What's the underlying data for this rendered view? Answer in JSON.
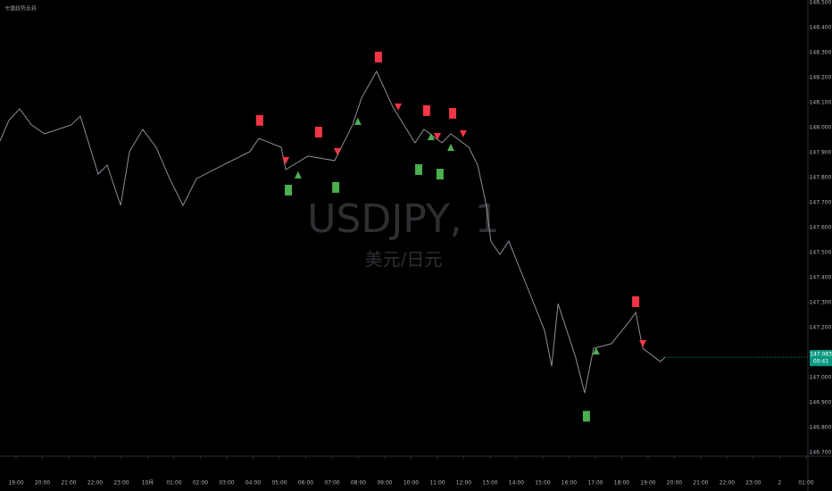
{
  "chart_data": {
    "type": "line",
    "title": "卡盟趋势反转",
    "watermark": "USDJPY, 1",
    "watermark_subtitle": "美元/日元",
    "last_price_label": "147.083",
    "countdown_label": "00:41",
    "color": "#8a8f98",
    "x": [
      -0.61,
      -0.27,
      0.14,
      0.58,
      1.08,
      2.1,
      2.44,
      3.12,
      3.46,
      3.97,
      4.31,
      4.81,
      5.32,
      5.83,
      6.34,
      6.85,
      7.86,
      8.88,
      9.22,
      10.07,
      10.24,
      11.08,
      12.1,
      12.78,
      13.12,
      13.69,
      14.31,
      15.15,
      15.49,
      16.17,
      16.51,
      17.19,
      17.53,
      17.86,
      18.03,
      18.37,
      18.71,
      19.39,
      20.07,
      20.34,
      20.58,
      21.25,
      21.59,
      21.93,
      22.61,
      23.29,
      23.53,
      23.8,
      24.47,
      24.64
    ],
    "values": [
      147.946,
      148.029,
      148.075,
      148.011,
      147.975,
      148.011,
      148.046,
      147.814,
      147.85,
      147.689,
      147.904,
      147.993,
      147.921,
      147.796,
      147.689,
      147.796,
      147.85,
      147.904,
      147.957,
      147.921,
      147.832,
      147.886,
      147.868,
      148.011,
      148.118,
      148.225,
      148.082,
      147.939,
      147.993,
      147.939,
      147.975,
      147.921,
      147.85,
      147.689,
      147.546,
      147.493,
      147.546,
      147.368,
      147.189,
      147.046,
      147.296,
      147.082,
      146.939,
      147.118,
      147.136,
      147.225,
      147.261,
      147.118,
      147.064,
      147.082
    ],
    "markers": [
      {
        "shape": "square",
        "color": "#f23645",
        "x": [
          9.25,
          11.49,
          13.76,
          15.59,
          16.58,
          23.53
        ],
        "y": [
          148.029,
          147.982,
          148.282,
          148.068,
          148.057,
          147.304
        ]
      },
      {
        "shape": "square",
        "color": "#4caf50",
        "x": [
          10.34,
          12.14,
          15.29,
          16.1,
          21.66
        ],
        "y": [
          147.75,
          147.761,
          147.832,
          147.814,
          146.846
        ]
      },
      {
        "shape": "triangle-down",
        "color": "#f23645",
        "x": [
          10.24,
          12.2,
          14.51,
          16.0,
          16.98,
          23.8
        ],
        "y": [
          147.868,
          147.904,
          148.082,
          147.964,
          147.975,
          147.136
        ]
      },
      {
        "shape": "triangle-up",
        "color": "#4caf50",
        "x": [
          10.71,
          12.98,
          15.76,
          16.51,
          22.03
        ],
        "y": [
          147.811,
          148.025,
          147.964,
          147.921,
          147.107
        ]
      }
    ],
    "xlim": [
      -0.61,
      30.07
    ],
    "xticks": [
      {
        "value": 0,
        "label": "19:00"
      },
      {
        "value": 1,
        "label": "20:00"
      },
      {
        "value": 2,
        "label": "21:00"
      },
      {
        "value": 3,
        "label": "22:00"
      },
      {
        "value": 4,
        "label": "23:00"
      },
      {
        "value": 5,
        "label": "10月"
      },
      {
        "value": 6,
        "label": "01:00"
      },
      {
        "value": 7,
        "label": "02:00"
      },
      {
        "value": 8,
        "label": "03:00"
      },
      {
        "value": 9,
        "label": "04:00"
      },
      {
        "value": 10,
        "label": "05:00"
      },
      {
        "value": 11,
        "label": "06:00"
      },
      {
        "value": 12,
        "label": "07:00"
      },
      {
        "value": 13,
        "label": "08:00"
      },
      {
        "value": 14,
        "label": "09:00"
      },
      {
        "value": 15,
        "label": "10:00"
      },
      {
        "value": 16,
        "label": "11:00"
      },
      {
        "value": 17,
        "label": "12:00"
      },
      {
        "value": 18,
        "label": "13:00"
      },
      {
        "value": 19,
        "label": "14:00"
      },
      {
        "value": 20,
        "label": "15:00"
      },
      {
        "value": 21,
        "label": "16:00"
      },
      {
        "value": 22,
        "label": "17:00"
      },
      {
        "value": 23,
        "label": "18:00"
      },
      {
        "value": 24,
        "label": "19:00"
      },
      {
        "value": 25,
        "label": "20:00"
      },
      {
        "value": 26,
        "label": "21:00"
      },
      {
        "value": 27,
        "label": "22:00"
      },
      {
        "value": 28,
        "label": "23:00"
      },
      {
        "value": 29,
        "label": "2"
      },
      {
        "value": 30,
        "label": "01:00"
      }
    ],
    "ylim": [
      146.69,
      148.51
    ],
    "yticks": [
      {
        "value": 148.5,
        "label": "148.500"
      },
      {
        "value": 148.4,
        "label": "148.400"
      },
      {
        "value": 148.3,
        "label": "148.300"
      },
      {
        "value": 148.2,
        "label": "148.200"
      },
      {
        "value": 148.1,
        "label": "148.100"
      },
      {
        "value": 148.0,
        "label": "148.000"
      },
      {
        "value": 147.9,
        "label": "147.900"
      },
      {
        "value": 147.8,
        "label": "147.800"
      },
      {
        "value": 147.7,
        "label": "147.700"
      },
      {
        "value": 147.6,
        "label": "147.600"
      },
      {
        "value": 147.5,
        "label": "147.500"
      },
      {
        "value": 147.4,
        "label": "147.400"
      },
      {
        "value": 147.3,
        "label": "147.300"
      },
      {
        "value": 147.2,
        "label": "147.200"
      },
      {
        "value": 147.1,
        "label": "147.100"
      },
      {
        "value": 147.0,
        "label": "147.000"
      },
      {
        "value": 146.9,
        "label": "146.900"
      },
      {
        "value": 146.8,
        "label": "146.800"
      },
      {
        "value": 146.7,
        "label": "146.700"
      }
    ],
    "grid": false
  }
}
